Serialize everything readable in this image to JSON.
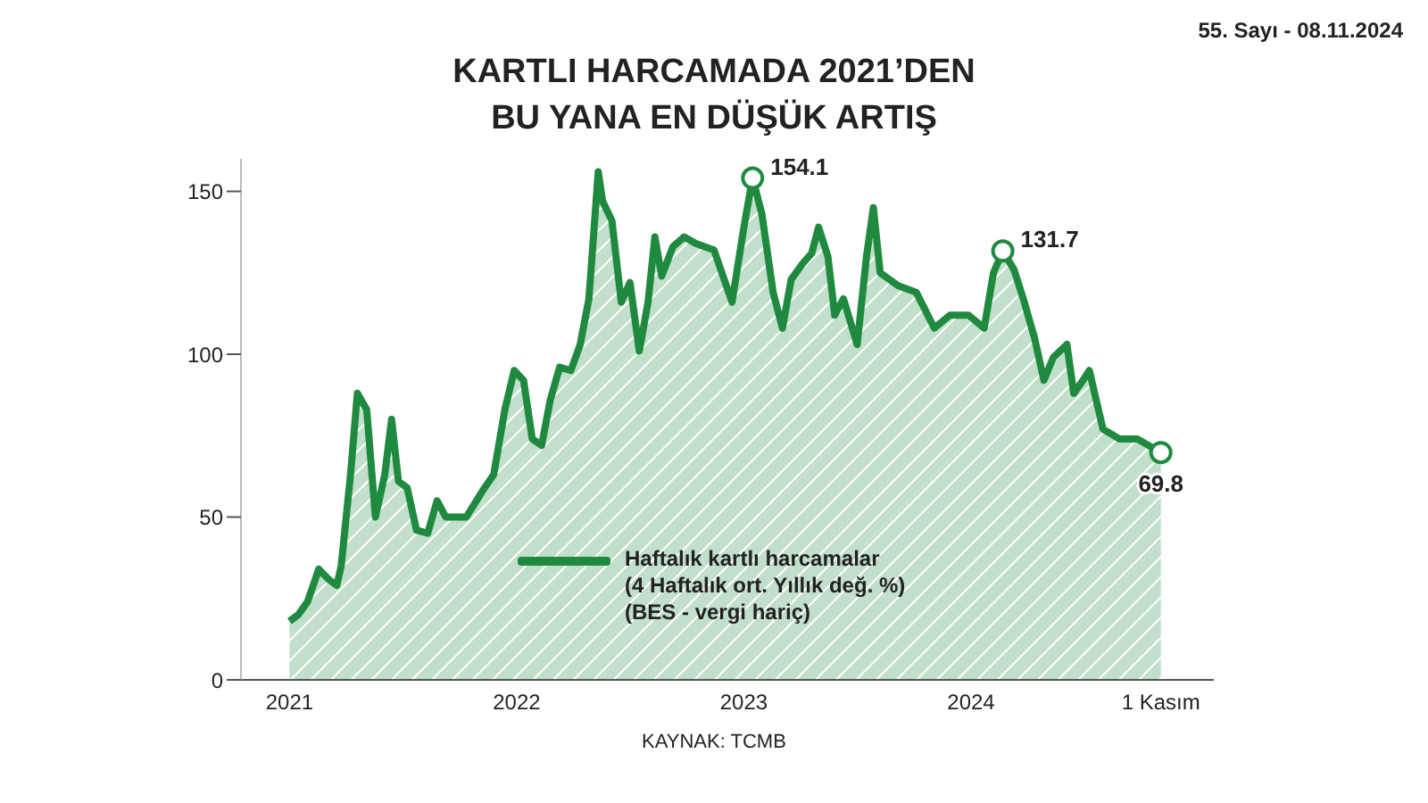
{
  "chart_data": {
    "type": "area",
    "title": "KARTLI HARCAMADA 2021’DEN\nBU YANA EN DÜŞÜK ARTIŞ",
    "annotations": [
      "55. Sayı - 08.11.2024",
      "KAYNAK: TCMB"
    ],
    "x": [
      "2021-01-01",
      "2021-01-15",
      "2021-01-30",
      "2021-02-17",
      "2021-03-04",
      "2021-03-18",
      "2021-03-25",
      "2021-04-09",
      "2021-04-20",
      "2021-05-05",
      "2021-05-19",
      "2021-06-03",
      "2021-06-14",
      "2021-06-25",
      "2021-07-09",
      "2021-07-24",
      "2021-08-11",
      "2021-08-26",
      "2021-09-09",
      "2021-10-12",
      "2021-11-07",
      "2021-11-25",
      "2021-12-13",
      "2021-12-28",
      "2022-01-12",
      "2022-01-26",
      "2022-02-10",
      "2022-02-24",
      "2022-03-11",
      "2022-03-29",
      "2022-04-13",
      "2022-04-27",
      "2022-05-12",
      "2022-05-19",
      "2022-06-03",
      "2022-06-18",
      "2022-07-02",
      "2022-07-17",
      "2022-07-31",
      "2022-08-11",
      "2022-08-22",
      "2022-09-09",
      "2022-09-27",
      "2022-10-16",
      "2022-11-14",
      "2022-12-13",
      "2023-01-01",
      "2023-01-15",
      "2023-01-30",
      "2023-02-17",
      "2023-03-04",
      "2023-03-18",
      "2023-04-06",
      "2023-04-20",
      "2023-05-01",
      "2023-05-16",
      "2023-05-27",
      "2023-06-10",
      "2023-07-02",
      "2023-07-17",
      "2023-07-28",
      "2023-08-08",
      "2023-09-06",
      "2023-10-05",
      "2023-11-03",
      "2023-11-28",
      "2023-12-28",
      "2024-01-22",
      "2024-02-06",
      "2024-02-21",
      "2024-03-10",
      "2024-03-25",
      "2024-04-12",
      "2024-04-27",
      "2024-05-12",
      "2024-06-03",
      "2024-06-14",
      "2024-06-29",
      "2024-07-09",
      "2024-07-20",
      "2024-07-31",
      "2024-08-26",
      "2024-09-24",
      "2024-11-01"
    ],
    "series": [
      {
        "name": "Haftalık kartlı harcamalar\n(4 Haftalık ort. Yıllık değ. %)\n(BES - vergi hariç)",
        "color": "#1f8a3f",
        "values": [
          18,
          20,
          24,
          34,
          31,
          29,
          35,
          63,
          88,
          83,
          50,
          63,
          80,
          61,
          59,
          46,
          45,
          55,
          50,
          50,
          58,
          63,
          83,
          95,
          92,
          74,
          72,
          86,
          96,
          95,
          103,
          117,
          156,
          147,
          141,
          116,
          122,
          101,
          116,
          136,
          124,
          133,
          136,
          134,
          132,
          116,
          139,
          154.1,
          143,
          119,
          108,
          123,
          128,
          131,
          139,
          130,
          112,
          117,
          103,
          130,
          145,
          125,
          121,
          119,
          108,
          112,
          112,
          108,
          125,
          131.7,
          126,
          117,
          105,
          92,
          99,
          103,
          88,
          92,
          95,
          86,
          77,
          74,
          74,
          69.8
        ],
        "value_labels": [
          null,
          null,
          null,
          null,
          null,
          null,
          null,
          null,
          null,
          null,
          null,
          null,
          null,
          null,
          null,
          null,
          null,
          null,
          null,
          null,
          null,
          null,
          null,
          null,
          null,
          null,
          null,
          null,
          null,
          null,
          null,
          null,
          null,
          null,
          null,
          null,
          null,
          null,
          null,
          null,
          null,
          null,
          null,
          null,
          null,
          null,
          null,
          "154.1",
          null,
          null,
          null,
          null,
          null,
          null,
          null,
          null,
          null,
          null,
          null,
          null,
          null,
          null,
          null,
          null,
          null,
          null,
          null,
          null,
          null,
          "131.7",
          null,
          null,
          null,
          null,
          null,
          null,
          null,
          null,
          null,
          null,
          null,
          null,
          null,
          "69.8"
        ]
      }
    ],
    "xlim": [
      "2020-10-15",
      "2025-01-25"
    ],
    "xticks": [
      "2021",
      "2022",
      "2023",
      "2024",
      {
        "value": "2024-11-01",
        "label": "1 Kasım"
      }
    ],
    "ylim": [
      0,
      160
    ],
    "yticks": [
      0,
      50,
      100,
      150
    ],
    "grid": false,
    "legend": "bottom"
  }
}
